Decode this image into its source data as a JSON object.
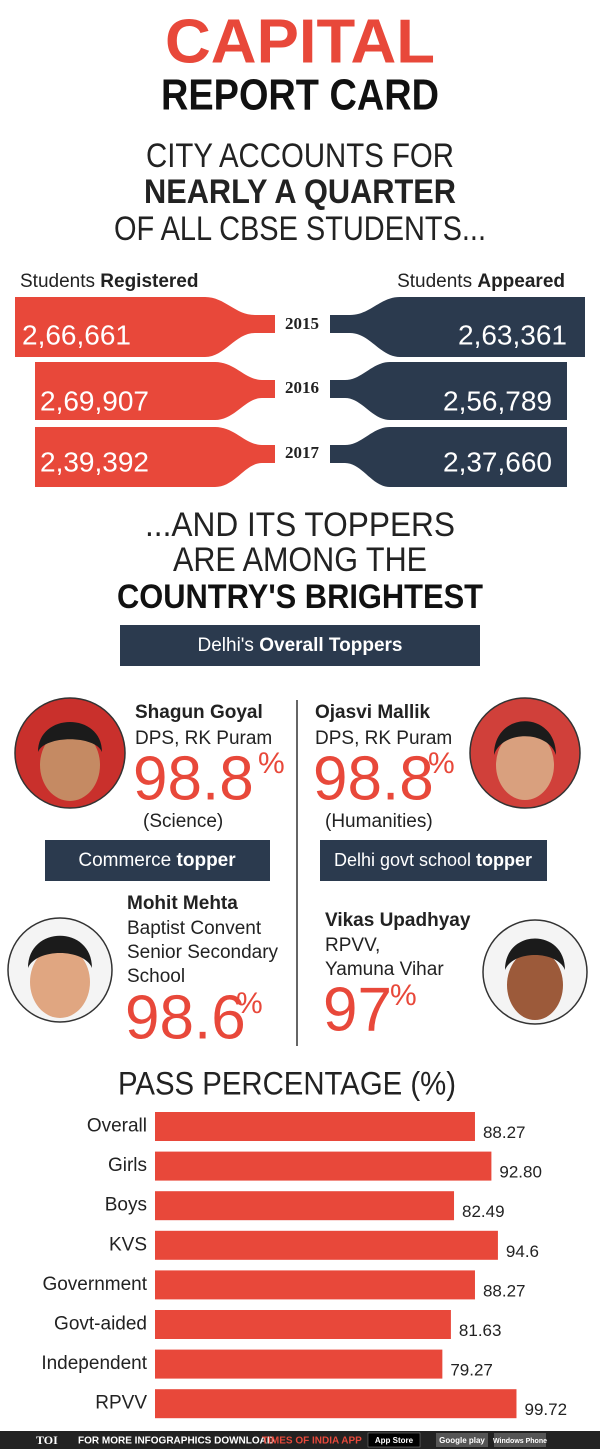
{
  "header": {
    "title": "CAPITAL",
    "subtitle": "REPORT CARD"
  },
  "intro": {
    "lines": [
      "CITY ACCOUNTS FOR",
      "NEARLY A QUARTER",
      "OF ALL CBSE STUDENTS..."
    ]
  },
  "students": {
    "left_label": [
      "Students ",
      "Registered"
    ],
    "right_label": [
      "Students ",
      "Appeared"
    ],
    "rows": [
      {
        "year": "2015",
        "registered": "2,66,661",
        "appeared": "2,63,361"
      },
      {
        "year": "2016",
        "registered": "2,69,907",
        "appeared": "2,56,789"
      },
      {
        "year": "2017",
        "registered": "2,39,392",
        "appeared": "2,37,660"
      }
    ]
  },
  "toppers": {
    "lines": [
      "...AND ITS TOPPERS",
      "ARE AMONG THE",
      "COUNTRY'S BRIGHTEST"
    ],
    "banner": [
      "Delhi's ",
      "Overall Toppers"
    ],
    "people": [
      {
        "name": "Shagun Goyal",
        "school": [
          "DPS, RK Puram"
        ],
        "score": "98.8",
        "unit": "%",
        "stream": "(Science)"
      },
      {
        "name": "Ojasvi Mallik",
        "school": [
          "DPS, RK Puram"
        ],
        "score": "98.8",
        "unit": "%",
        "stream": "(Humanities)"
      },
      {
        "category": [
          "Commerce ",
          "topper"
        ],
        "name": "Mohit Mehta",
        "school": [
          "Baptist Convent",
          "Senior Secondary",
          "School"
        ],
        "score": "98.6",
        "unit": "%"
      },
      {
        "category": [
          "Delhi govt school ",
          "topper"
        ],
        "name": "Vikas Upadhyay",
        "school": [
          "RPVV,",
          "Yamuna Vihar"
        ],
        "score": "97",
        "unit": "%"
      }
    ]
  },
  "chart_data": {
    "type": "bar",
    "title": "PASS PERCENTAGE (%)",
    "color": "#e8483a",
    "categories": [
      "Overall",
      "Girls",
      "Boys",
      "KVS",
      "Government",
      "Govt-aided",
      "Independent",
      "RPVV"
    ],
    "values": [
      88.27,
      92.8,
      82.49,
      94.6,
      88.27,
      81.63,
      79.27,
      99.72
    ],
    "value_labels": [
      "88.27",
      "92.80",
      "82.49",
      "94.6",
      "88.27",
      "81.63",
      "79.27",
      "99.72"
    ]
  },
  "footer": {
    "logo": "TOI",
    "text": "FOR MORE INFOGRAPHICS DOWNLOAD",
    "app": "TIMES OF INDIA APP",
    "badges": [
      "App Store",
      "Google play",
      "Windows Phone"
    ]
  }
}
